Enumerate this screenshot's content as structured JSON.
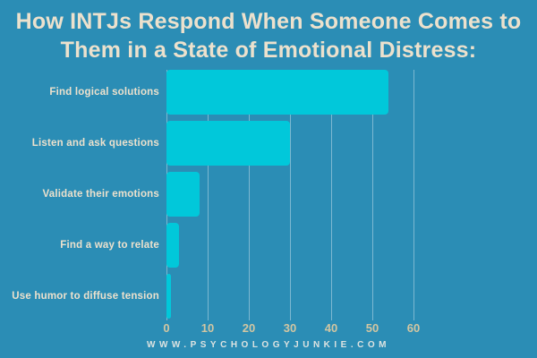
{
  "poster": {
    "title": "How INTJs Respond When Someone Comes to\nThem in a State of Emotional Distress:",
    "footer": "WWW.PSYCHOLOGYJUNKIE.COM"
  },
  "chart_data": {
    "type": "bar",
    "orientation": "horizontal",
    "title": "How INTJs Respond When Someone Comes to Them in a State of Emotional Distress:",
    "categories": [
      "Find logical solutions",
      "Listen and ask questions",
      "Validate their emotions",
      "Find a way to relate",
      "Use humor to diffuse tension"
    ],
    "values": [
      54,
      30,
      8,
      3,
      1
    ],
    "x_ticks": [
      0,
      10,
      20,
      30,
      40,
      50,
      60
    ],
    "xlim": [
      0,
      60
    ],
    "xlabel": "",
    "ylabel": "",
    "grid": true,
    "legend": false
  },
  "colors": {
    "background": "#2b8db5",
    "bar": "#01c8da",
    "title_text": "#ece1cd",
    "category_label_text": "#ece1cd",
    "tick_label_text": "#d2c6a2",
    "footer_text": "#dde3e1",
    "gridline": "#6db2cc"
  }
}
